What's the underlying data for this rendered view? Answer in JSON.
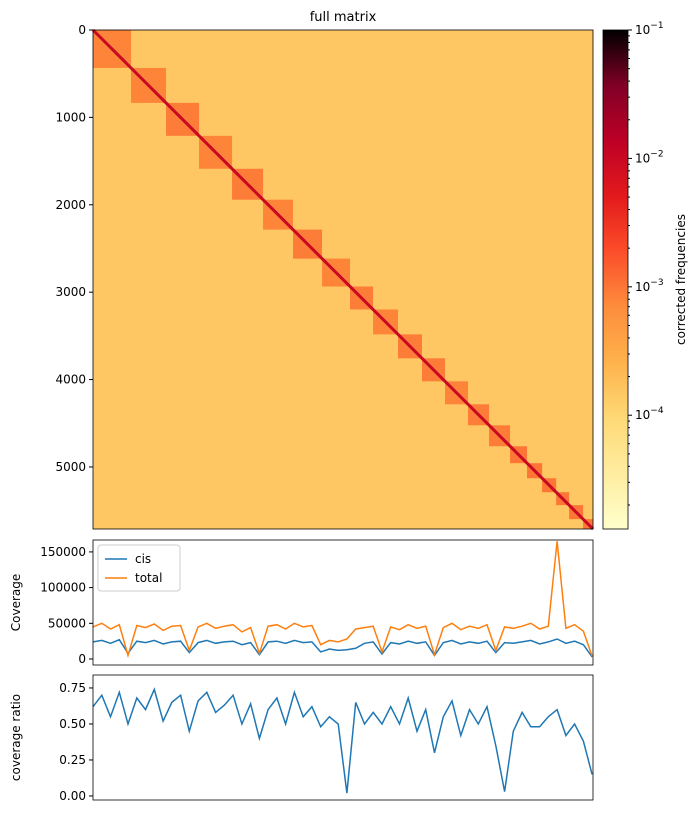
{
  "chart_data": [
    {
      "type": "heatmap",
      "title": "full matrix",
      "xlim": [
        0,
        5710
      ],
      "ylim": [
        0,
        5710
      ],
      "yticks": [
        0,
        1000,
        2000,
        3000,
        4000,
        5000
      ],
      "block_edges": [
        0,
        434,
        834,
        1211,
        1588,
        1942,
        2284,
        2616,
        2935,
        3198,
        3483,
        3757,
        4020,
        4283,
        4523,
        4763,
        4957,
        5129,
        5289,
        5437,
        5597,
        5710
      ],
      "block_values": [
        0.0008,
        0.0008,
        0.0009,
        0.0008,
        0.0009,
        0.0008,
        0.0009,
        0.0008,
        0.0009,
        0.0008,
        0.0009,
        0.0009,
        0.0008,
        0.0009,
        0.0009,
        0.001,
        0.001,
        0.001,
        0.001,
        0.001,
        0.001
      ],
      "background_value": 0.00015,
      "diagonal_value": 0.01,
      "colorbar": {
        "label": "corrected frequencies",
        "log": true,
        "clim": [
          1.3e-05,
          0.1
        ],
        "ticks": [
          {
            "value": 0.1,
            "label": "10−1"
          },
          {
            "value": 0.01,
            "label": "10−2"
          },
          {
            "value": 0.001,
            "label": "10−3"
          },
          {
            "value": 0.0001,
            "label": "10−4"
          }
        ],
        "colors": [
          "#ffffcc",
          "#ffeda0",
          "#fed976",
          "#feb24c",
          "#fd8d3c",
          "#fc4e2a",
          "#e31a1c",
          "#bd0026",
          "#800026",
          "#000000"
        ]
      }
    },
    {
      "type": "line",
      "y_label": "Coverage",
      "xlim": [
        0,
        5710
      ],
      "ylim": [
        -8400,
        166700
      ],
      "yticks": [
        0,
        50000,
        100000,
        150000
      ],
      "legend": "upper left",
      "x": [
        0,
        100,
        200,
        300,
        400,
        500,
        600,
        700,
        800,
        900,
        1000,
        1100,
        1200,
        1300,
        1400,
        1500,
        1600,
        1700,
        1800,
        1900,
        2000,
        2100,
        2200,
        2300,
        2400,
        2500,
        2600,
        2700,
        2800,
        2900,
        3000,
        3100,
        3200,
        3300,
        3400,
        3500,
        3600,
        3700,
        3800,
        3900,
        4000,
        4100,
        4200,
        4300,
        4400,
        4500,
        4600,
        4700,
        4800,
        4900,
        5000,
        5100,
        5200,
        5300,
        5400,
        5500,
        5600,
        5700
      ],
      "series": [
        {
          "name": "cis",
          "color": "#1f77b4",
          "values": [
            24000,
            26000,
            22000,
            27000,
            8000,
            25000,
            23000,
            26000,
            21000,
            24000,
            25000,
            9000,
            23000,
            26000,
            22000,
            24000,
            25000,
            20000,
            23000,
            6000,
            24000,
            25000,
            22000,
            26000,
            23000,
            24000,
            10000,
            14000,
            12000,
            13000,
            15000,
            22000,
            24000,
            7000,
            23000,
            21000,
            25000,
            22000,
            24000,
            5000,
            23000,
            26000,
            21000,
            24000,
            22000,
            25000,
            9000,
            23000,
            22000,
            24000,
            26000,
            21000,
            24000,
            28000,
            22000,
            25000,
            20000,
            3000
          ]
        },
        {
          "name": "total",
          "color": "#ff7f0e",
          "values": [
            45000,
            50000,
            42000,
            48000,
            5000,
            47000,
            44000,
            49000,
            40000,
            46000,
            47000,
            12000,
            45000,
            50000,
            43000,
            46000,
            48000,
            38000,
            44000,
            8000,
            46000,
            48000,
            42000,
            50000,
            45000,
            47000,
            20000,
            26000,
            24000,
            28000,
            42000,
            44000,
            46000,
            10000,
            45000,
            41000,
            48000,
            43000,
            46000,
            6000,
            44000,
            50000,
            41000,
            46000,
            43000,
            48000,
            12000,
            45000,
            43000,
            46000,
            50000,
            42000,
            46000,
            165000,
            43000,
            48000,
            39000,
            4000
          ]
        }
      ]
    },
    {
      "type": "line",
      "y_label": "coverage ratio",
      "xlim": [
        0,
        5710
      ],
      "ylim": [
        -0.028,
        0.84
      ],
      "yticks": [
        {
          "value": 0,
          "label": "0.00"
        },
        {
          "value": 0.25,
          "label": "0.25"
        },
        {
          "value": 0.5,
          "label": "0.50"
        },
        {
          "value": 0.75,
          "label": "0.75"
        }
      ],
      "x": [
        0,
        100,
        200,
        300,
        400,
        500,
        600,
        700,
        800,
        900,
        1000,
        1100,
        1200,
        1300,
        1400,
        1500,
        1600,
        1700,
        1800,
        1900,
        2000,
        2100,
        2200,
        2300,
        2400,
        2500,
        2600,
        2700,
        2800,
        2900,
        3000,
        3100,
        3200,
        3300,
        3400,
        3500,
        3600,
        3700,
        3800,
        3900,
        4000,
        4100,
        4200,
        4300,
        4400,
        4500,
        4600,
        4700,
        4800,
        4900,
        5000,
        5100,
        5200,
        5300,
        5400,
        5500,
        5600,
        5700
      ],
      "series": [
        {
          "color": "#1f77b4",
          "values": [
            0.62,
            0.7,
            0.55,
            0.72,
            0.5,
            0.68,
            0.6,
            0.74,
            0.52,
            0.65,
            0.7,
            0.45,
            0.66,
            0.72,
            0.58,
            0.63,
            0.7,
            0.5,
            0.64,
            0.4,
            0.6,
            0.68,
            0.5,
            0.72,
            0.55,
            0.62,
            0.48,
            0.55,
            0.5,
            0.02,
            0.65,
            0.5,
            0.58,
            0.5,
            0.62,
            0.5,
            0.68,
            0.45,
            0.6,
            0.3,
            0.55,
            0.66,
            0.42,
            0.6,
            0.5,
            0.62,
            0.35,
            0.03,
            0.45,
            0.58,
            0.48,
            0.48,
            0.55,
            0.6,
            0.42,
            0.5,
            0.38,
            0.15
          ]
        }
      ]
    }
  ]
}
